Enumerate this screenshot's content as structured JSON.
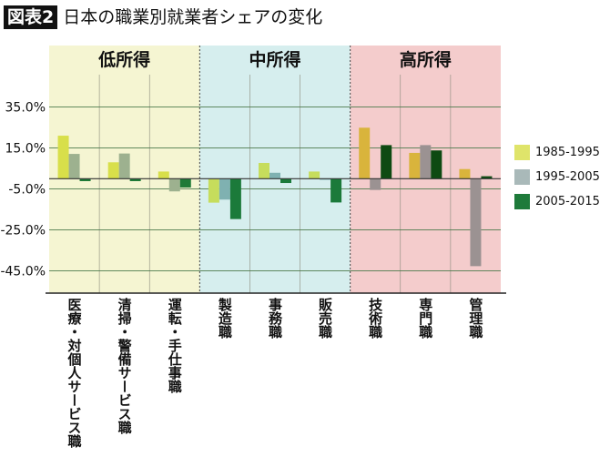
{
  "title": {
    "badge": "図表2",
    "text": "日本の職業別就業者シェアの変化"
  },
  "chart_data": {
    "type": "bar",
    "title": "日本の職業別就業者シェアの変化",
    "xlabel": "",
    "ylabel": "",
    "ylim": [
      -50,
      45
    ],
    "yticks": [
      35,
      15,
      -5,
      -25,
      -45
    ],
    "ytick_labels": [
      "35.0%",
      "15.0%",
      "-5.0%",
      "-25.0%",
      "-45.0%"
    ],
    "grid": true,
    "legend_position": "right",
    "groups": [
      {
        "label": "低所得",
        "background": "#f5f5d2",
        "categories": [
          0,
          1,
          2
        ],
        "colors": [
          "#d8df4a",
          "#9db18f",
          "#1f7a37"
        ]
      },
      {
        "label": "中所得",
        "background": "#d6eeee",
        "categories": [
          3,
          4,
          5
        ],
        "colors": [
          "#c6dd5c",
          "#7fb1b1",
          "#1b7a3a"
        ]
      },
      {
        "label": "高所得",
        "background": "#f4cccc",
        "categories": [
          6,
          7,
          8
        ],
        "colors": [
          "#d9b43c",
          "#9b9292",
          "#0e4a12"
        ]
      }
    ],
    "categories": [
      "医療・対個人サービス職",
      "清掃・警備サービス職",
      "運転・手仕事職",
      "製造職",
      "事務職",
      "販売職",
      "技術職",
      "専門職",
      "管理職"
    ],
    "series": [
      {
        "name": "1985-1995",
        "color": "#dfe46a",
        "values": [
          21.0,
          8.0,
          3.5,
          -11.7,
          7.7,
          3.5,
          24.9,
          12.6,
          4.7
        ]
      },
      {
        "name": "1995-2005",
        "color": "#a9b9b9",
        "values": [
          12.1,
          12.3,
          -6.2,
          -10.2,
          2.9,
          -0.3,
          -5.5,
          16.4,
          -42.7
        ]
      },
      {
        "name": "2005-2015",
        "color": "#1e7a3a",
        "values": [
          -1.2,
          -1.2,
          -4.3,
          -19.7,
          -2.1,
          -11.6,
          16.4,
          13.8,
          1.2
        ]
      }
    ]
  }
}
